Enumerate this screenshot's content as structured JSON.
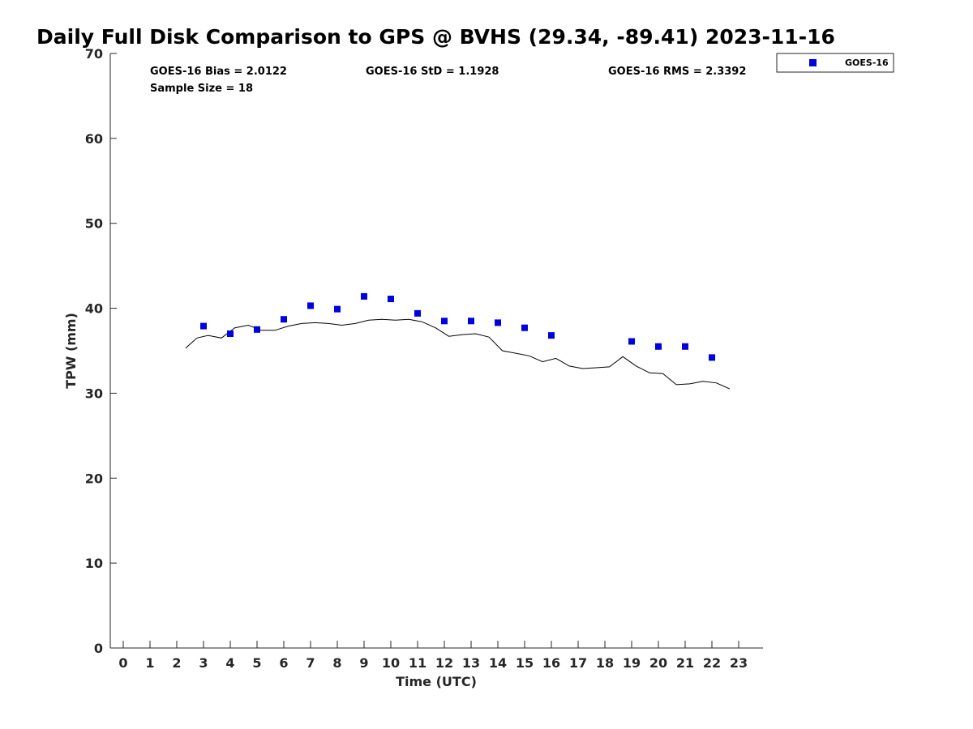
{
  "chart_data": {
    "type": "scatter",
    "title": "Daily Full Disk Comparison to GPS @ BVHS (29.34, -89.41) 2023-11-16",
    "xlabel": "Time (UTC)",
    "ylabel": "TPW (mm)",
    "xlim": [
      -0.5,
      23.8
    ],
    "ylim": [
      0,
      70
    ],
    "x_ticks": [
      0,
      1,
      2,
      3,
      4,
      5,
      6,
      7,
      8,
      9,
      10,
      11,
      12,
      13,
      14,
      15,
      16,
      17,
      18,
      19,
      20,
      21,
      22,
      23
    ],
    "y_ticks": [
      0,
      10,
      20,
      30,
      40,
      50,
      60,
      70
    ],
    "grid": false,
    "legend_position": "top-right, outside plot area",
    "stats": {
      "bias": "GOES-16 Bias = 2.0122",
      "std": "GOES-16 StD = 1.1928",
      "rms": "GOES-16 RMS = 2.3392",
      "sample": "Sample Size = 18"
    },
    "series": [
      {
        "name": "GOES-16",
        "kind": "markers",
        "marker": "square",
        "color": "#0000dd",
        "points": [
          [
            3,
            37.9
          ],
          [
            4,
            37.0
          ],
          [
            5,
            37.5
          ],
          [
            6,
            38.7
          ],
          [
            7,
            40.3
          ],
          [
            8,
            39.9
          ],
          [
            9,
            41.4
          ],
          [
            10,
            41.1
          ],
          [
            11,
            39.4
          ],
          [
            12,
            38.5
          ],
          [
            13,
            38.5
          ],
          [
            14,
            38.3
          ],
          [
            15,
            37.7
          ],
          [
            16,
            36.8
          ],
          [
            19,
            36.1
          ],
          [
            20,
            35.5
          ],
          [
            21,
            35.5
          ],
          [
            22,
            34.2
          ]
        ]
      },
      {
        "kind": "line",
        "color": "#000000",
        "points": [
          [
            2.33,
            35.3
          ],
          [
            2.75,
            36.5
          ],
          [
            3.17,
            36.8
          ],
          [
            3.67,
            36.5
          ],
          [
            4.17,
            37.7
          ],
          [
            4.67,
            38.0
          ],
          [
            5.17,
            37.4
          ],
          [
            5.67,
            37.4
          ],
          [
            6.17,
            37.9
          ],
          [
            6.67,
            38.2
          ],
          [
            7.17,
            38.3
          ],
          [
            7.67,
            38.2
          ],
          [
            8.17,
            38.0
          ],
          [
            8.67,
            38.2
          ],
          [
            9.17,
            38.6
          ],
          [
            9.67,
            38.7
          ],
          [
            10.17,
            38.6
          ],
          [
            10.67,
            38.7
          ],
          [
            11.17,
            38.4
          ],
          [
            11.67,
            37.7
          ],
          [
            12.17,
            36.7
          ],
          [
            12.67,
            36.9
          ],
          [
            13.17,
            37.0
          ],
          [
            13.67,
            36.6
          ],
          [
            14.17,
            35.0
          ],
          [
            14.67,
            34.7
          ],
          [
            15.17,
            34.4
          ],
          [
            15.67,
            33.7
          ],
          [
            16.17,
            34.1
          ],
          [
            16.67,
            33.2
          ],
          [
            17.17,
            32.9
          ],
          [
            17.67,
            33.0
          ],
          [
            18.17,
            33.1
          ],
          [
            18.67,
            34.3
          ],
          [
            19.17,
            33.2
          ],
          [
            19.67,
            32.4
          ],
          [
            20.17,
            32.3
          ],
          [
            20.67,
            31.0
          ],
          [
            21.17,
            31.1
          ],
          [
            21.67,
            31.4
          ],
          [
            22.17,
            31.2
          ],
          [
            22.67,
            30.5
          ]
        ]
      }
    ]
  }
}
